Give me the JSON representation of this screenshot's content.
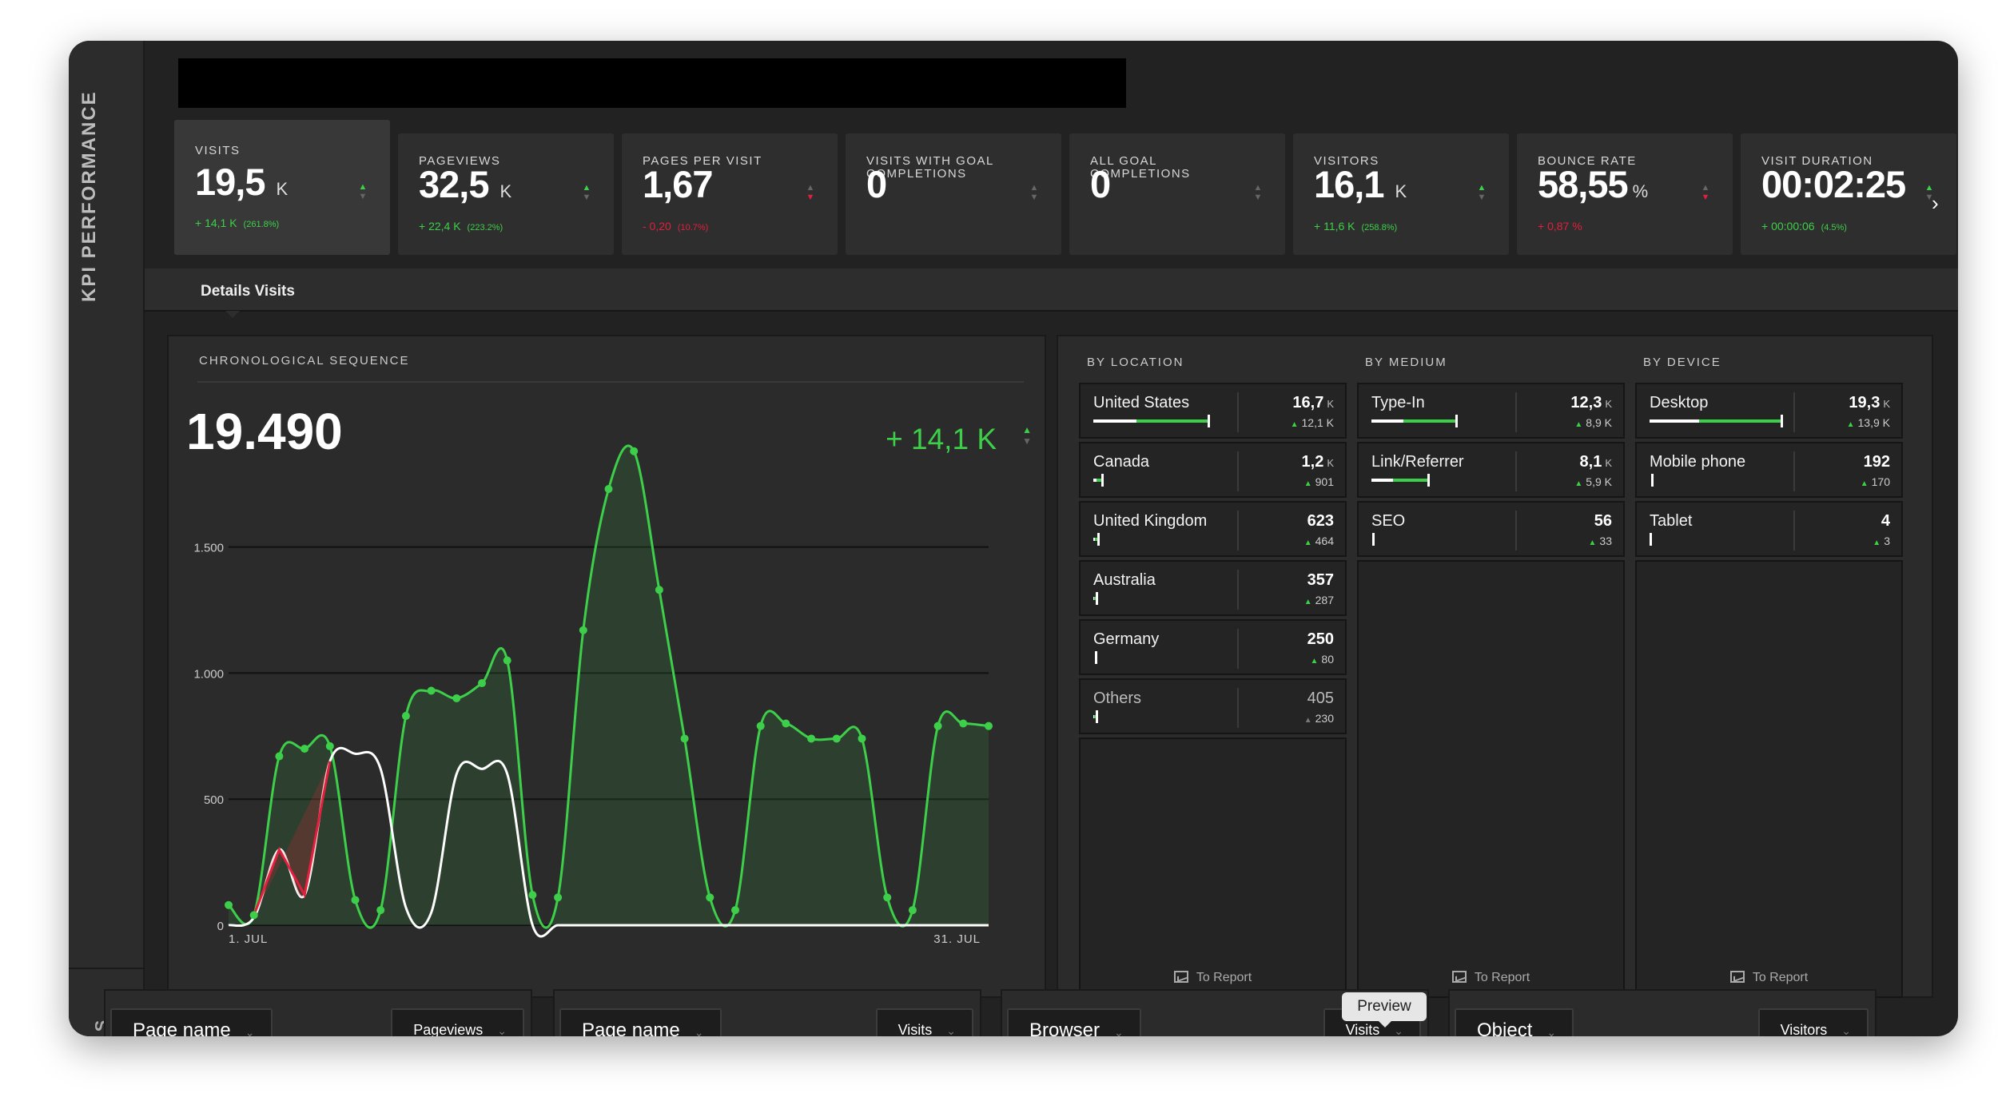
{
  "sidebar": {
    "title": "KPI PERFORMANCE",
    "title2": "S"
  },
  "kpis": [
    {
      "label": "VISITS",
      "value": "19,5",
      "unit": "K",
      "delta": "+ 14,1 K",
      "pct": "(261.8%)",
      "trend": "up",
      "active": true
    },
    {
      "label": "PAGEVIEWS",
      "value": "32,5",
      "unit": "K",
      "delta": "+ 22,4 K",
      "pct": "(223.2%)",
      "trend": "up"
    },
    {
      "label": "PAGES PER VISIT",
      "value": "1,67",
      "unit": "",
      "delta": "- 0,20",
      "pct": "(10.7%)",
      "trend": "down"
    },
    {
      "label": "VISITS WITH GOAL COMPLETIONS",
      "value": "0",
      "unit": "",
      "delta": "",
      "pct": "",
      "trend": "none"
    },
    {
      "label": "ALL GOAL COMPLETIONS",
      "value": "0",
      "unit": "",
      "delta": "",
      "pct": "",
      "trend": "none"
    },
    {
      "label": "VISITORS",
      "value": "16,1",
      "unit": "K",
      "delta": "+ 11,6 K",
      "pct": "(258.8%)",
      "trend": "up"
    },
    {
      "label": "BOUNCE RATE",
      "value": "58,55",
      "unit": "%",
      "delta": "+ 0,87 %",
      "pct": "",
      "trend": "down"
    },
    {
      "label": "VISIT DURATION",
      "value": "00:02:25",
      "unit": "",
      "delta": "+ 00:00:06",
      "pct": "(4.5%)",
      "trend": "up"
    }
  ],
  "tab": {
    "label": "Details Visits"
  },
  "chronological": {
    "title": "CHRONOLOGICAL SEQUENCE",
    "total": "19.490",
    "change": "+ 14,1 K"
  },
  "chart_data": {
    "type": "line",
    "x_labels": [
      "1. JUL",
      "31. JUL"
    ],
    "x": [
      1,
      2,
      3,
      4,
      5,
      6,
      7,
      8,
      9,
      10,
      11,
      12,
      13,
      14,
      15,
      16,
      17,
      18,
      19,
      20,
      21,
      22,
      23,
      24,
      25,
      26,
      27,
      28,
      29,
      30,
      31
    ],
    "ylim": [
      0,
      1860
    ],
    "yticks": [
      0,
      500,
      1000,
      1500
    ],
    "ytick_labels": [
      "0",
      "500",
      "1.000",
      "1.500"
    ],
    "series": [
      {
        "values": [
          80,
          40,
          670,
          700,
          710,
          100,
          60,
          830,
          930,
          900,
          960,
          1050,
          120,
          110,
          1170,
          1730,
          1880,
          1330,
          740,
          110,
          60,
          790,
          800,
          740,
          740,
          740,
          110,
          60,
          790,
          800,
          790
        ],
        "color": "#3ecf4a"
      },
      {
        "values": [
          0,
          30,
          300,
          120,
          650,
          680,
          620,
          70,
          50,
          600,
          620,
          600,
          0,
          0,
          0,
          0,
          0,
          0,
          0,
          0,
          0,
          0,
          0,
          0,
          0,
          0,
          0,
          0,
          0,
          0,
          0
        ],
        "color": "#ffffff"
      }
    ]
  },
  "breakdown": {
    "location": {
      "title": "BY LOCATION",
      "report": "To Report",
      "items": [
        {
          "name": "United States",
          "value": "16,7",
          "unit": "K",
          "delta": "12,1 K",
          "share": 0.86
        },
        {
          "name": "Canada",
          "value": "1,2",
          "unit": "K",
          "delta": "901",
          "share": 0.06
        },
        {
          "name": "United Kingdom",
          "value": "623",
          "unit": "",
          "delta": "464",
          "share": 0.03
        },
        {
          "name": "Australia",
          "value": "357",
          "unit": "",
          "delta": "287",
          "share": 0.02
        },
        {
          "name": "Germany",
          "value": "250",
          "unit": "",
          "delta": "80",
          "share": 0.01
        },
        {
          "name": "Others",
          "value": "405",
          "unit": "",
          "delta": "230",
          "share": 0.02,
          "dim": true
        }
      ]
    },
    "medium": {
      "title": "BY MEDIUM",
      "report": "To Report",
      "items": [
        {
          "name": "Type-In",
          "value": "12,3",
          "unit": "K",
          "delta": "8,9 K",
          "share": 0.63
        },
        {
          "name": "Link/Referrer",
          "value": "8,1",
          "unit": "K",
          "delta": "5,9 K",
          "share": 0.42
        },
        {
          "name": "SEO",
          "value": "56",
          "unit": "",
          "delta": "33",
          "share": 0.005
        }
      ]
    },
    "device": {
      "title": "BY DEVICE",
      "report": "To Report",
      "items": [
        {
          "name": "Desktop",
          "value": "19,3",
          "unit": "K",
          "delta": "13,9 K",
          "share": 0.99
        },
        {
          "name": "Mobile phone",
          "value": "192",
          "unit": "",
          "delta": "170",
          "share": 0.01
        },
        {
          "name": "Tablet",
          "value": "4",
          "unit": "",
          "delta": "3",
          "share": 0.0
        }
      ]
    }
  },
  "bottom_panels": [
    {
      "dimension": "Page name",
      "metric": "Pageviews"
    },
    {
      "dimension": "Page name",
      "metric": "Visits"
    },
    {
      "dimension": "Browser",
      "metric": "Visits"
    },
    {
      "dimension": "Object",
      "metric": "Visitors"
    }
  ],
  "tooltip": "Preview",
  "colors": {
    "up": "#3ecf4a",
    "down": "#e0203c",
    "background": "#222222",
    "panel": "#2b2b2b"
  }
}
